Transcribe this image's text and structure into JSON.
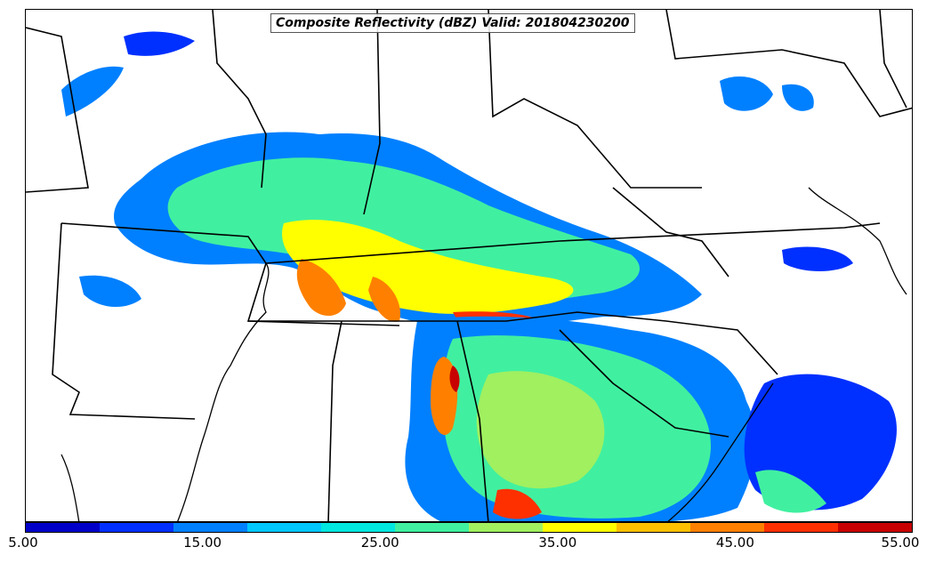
{
  "title": "Composite Reflectivity (dBZ) Valid: 201804230200",
  "colorbar": {
    "colors": [
      "#0000c8",
      "#0030ff",
      "#0080ff",
      "#00c8ff",
      "#00e8e0",
      "#40f0a0",
      "#a0f060",
      "#ffff00",
      "#ffc000",
      "#ff8000",
      "#ff3000",
      "#c80000"
    ],
    "min": 5,
    "max": 55,
    "tick_labels": [
      "5.00",
      "15.00",
      "25.00",
      "35.00",
      "45.00",
      "55.00"
    ]
  },
  "map": {
    "projection": "Lambert conformal",
    "region": "Southeastern United States",
    "boundaries": "state and coastline lines",
    "field": "composite reflectivity"
  }
}
